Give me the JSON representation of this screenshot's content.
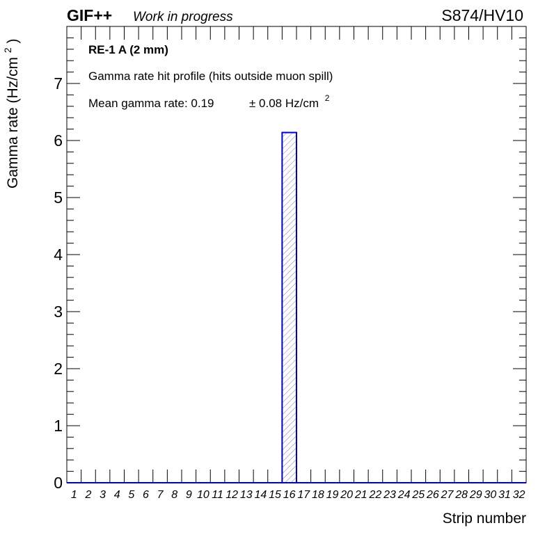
{
  "header": {
    "logo": "GIF++",
    "status": "Work in progress",
    "run_label": "S874/HV10"
  },
  "annotations": {
    "chamber": "RE-1 A (2 mm)",
    "description": "Gamma rate hit profile (hits outside muon spill)",
    "mean_prefix": "Mean gamma rate: 0.19",
    "mean_error": "± 0.08 Hz/cm",
    "mean_exp": "2"
  },
  "chart_data": {
    "type": "bar",
    "title": "",
    "xlabel": "Strip number",
    "ylabel": "Gamma rate (Hz/cm",
    "ylabel_exp": "2",
    "ylabel_close": ")",
    "categories": [
      "1",
      "2",
      "3",
      "4",
      "5",
      "6",
      "7",
      "8",
      "9",
      "10",
      "11",
      "12",
      "13",
      "14",
      "15",
      "16",
      "17",
      "18",
      "19",
      "20",
      "21",
      "22",
      "23",
      "24",
      "25",
      "26",
      "27",
      "28",
      "29",
      "30",
      "31",
      "32"
    ],
    "values": [
      0,
      0,
      0,
      0,
      0,
      0,
      0,
      0,
      0,
      0,
      0,
      0,
      0,
      0,
      0,
      6.14,
      0,
      0,
      0,
      0,
      0,
      0,
      0,
      0,
      0,
      0,
      0,
      0,
      0,
      0,
      0,
      0
    ],
    "ylim": [
      0,
      8
    ],
    "yticks": [
      0,
      1,
      2,
      3,
      4,
      5,
      6,
      7
    ],
    "series_color": "#0000cc",
    "hatch_color": "#7777cc",
    "grid": false,
    "legend": "none"
  }
}
